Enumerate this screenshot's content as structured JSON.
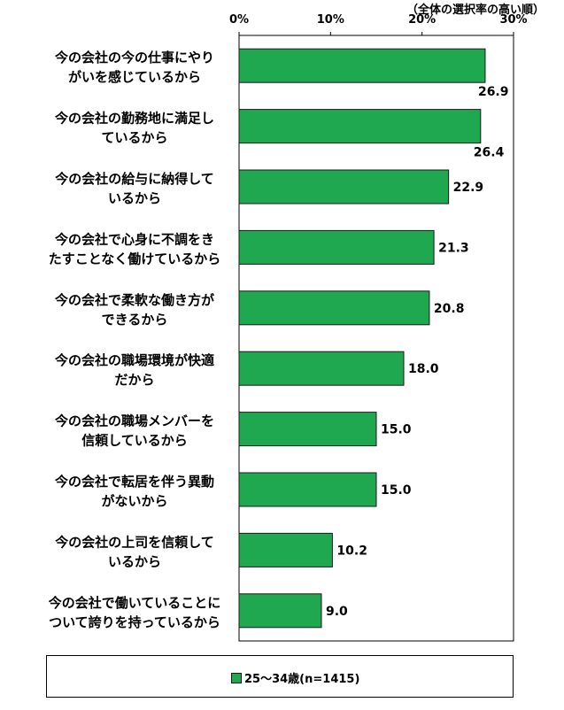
{
  "chart_data": {
    "type": "bar",
    "orientation": "horizontal",
    "note": "（全体の選択率の高い順）",
    "xlim": [
      0,
      30
    ],
    "ticks": [
      "0%",
      "10%",
      "20%",
      "30%"
    ],
    "tick_values": [
      0,
      10,
      20,
      30
    ],
    "categories": [
      [
        "今の会社の今の仕事にやり",
        "がいを感じているから"
      ],
      [
        "今の会社の勤務地に満足し",
        "ているから"
      ],
      [
        "今の会社の給与に納得して",
        "いるから"
      ],
      [
        "今の会社で心身に不調をき",
        "たすことなく働けているから"
      ],
      [
        "今の会社で柔軟な働き方が",
        "できるから"
      ],
      [
        "今の会社の職場環境が快適",
        "だから"
      ],
      [
        "今の会社の職場メンバーを",
        "信頼しているから"
      ],
      [
        "今の会社で転居を伴う異動",
        "がないから"
      ],
      [
        "今の会社の上司を信頼して",
        "いるから"
      ],
      [
        "今の会社で働いていることに",
        "ついて誇りを持っているから"
      ]
    ],
    "series": [
      {
        "name": "25～34歳(n=1415)",
        "color": "#1fa84f",
        "values": [
          26.9,
          26.4,
          22.9,
          21.3,
          20.8,
          18.0,
          15.0,
          15.0,
          10.2,
          9.0
        ],
        "labels": [
          "26.9",
          "26.4",
          "22.9",
          "21.3",
          "20.8",
          "18.0",
          "15.0",
          "15.0",
          "10.2",
          "9.0"
        ]
      }
    ],
    "legend_position": "bottom"
  }
}
